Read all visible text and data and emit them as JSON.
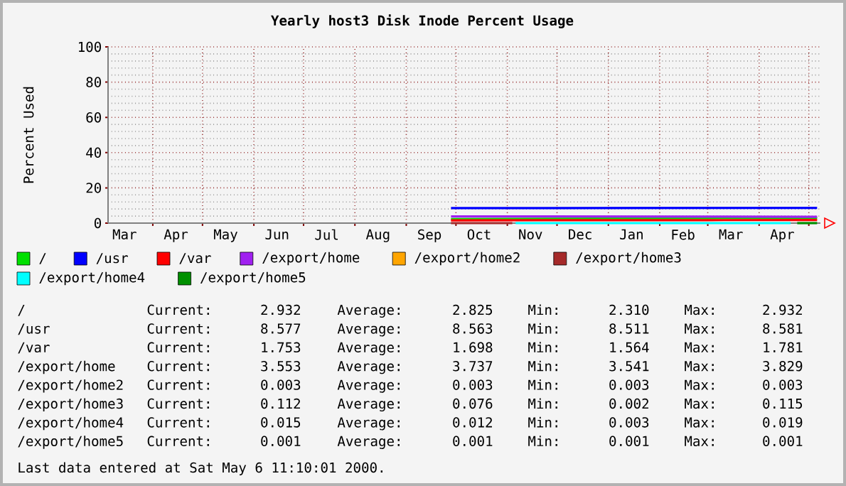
{
  "chart_data": {
    "type": "line",
    "title": "Yearly host3 Disk Inode Percent Usage",
    "ylabel": "Percent Used",
    "x": [
      "1999-09-28",
      "2000-03-01",
      "2000-05-06"
    ],
    "series": [
      {
        "name": "/",
        "color": "#00e000",
        "values": [
          2.3,
          2.8,
          2.9
        ]
      },
      {
        "name": "/usr",
        "color": "#0000ff",
        "values": [
          8.5,
          8.6,
          8.6
        ]
      },
      {
        "name": "/var",
        "color": "#ff0000",
        "values": [
          1.6,
          1.7,
          1.8
        ]
      },
      {
        "name": "/export/home",
        "color": "#a020f0",
        "values": [
          3.8,
          3.7,
          3.6
        ]
      },
      {
        "name": "/export/home2",
        "color": "#ffa500",
        "values": [
          null,
          null,
          null
        ]
      },
      {
        "name": "/export/home3",
        "color": "#a52a2a",
        "x": [
          "1999-09-28",
          "1999-11-04"
        ],
        "values": [
          0,
          0
        ]
      },
      {
        "name": "/export/home4",
        "color": "#00ffff",
        "x": [
          "1999-11-06",
          "2000-03-01",
          "2000-04-20"
        ],
        "values": [
          0,
          0,
          0
        ]
      },
      {
        "name": "/export/home5",
        "color": "#009000",
        "x": [
          "2000-04-24",
          "2000-05-06"
        ],
        "values": [
          0,
          0
        ]
      }
    ],
    "xlim": [
      "1999-03-05",
      "2000-05-08"
    ],
    "xticks": [
      {
        "value": "1999-03-15",
        "label": "Mar"
      },
      {
        "value": "1999-04-01",
        "label": null
      },
      {
        "value": "1999-04-15",
        "label": "Apr"
      },
      {
        "value": "1999-05-01",
        "label": null
      },
      {
        "value": "1999-05-15",
        "label": "May"
      },
      {
        "value": "1999-06-01",
        "label": null
      },
      {
        "value": "1999-06-15",
        "label": "Jun"
      },
      {
        "value": "1999-07-01",
        "label": null
      },
      {
        "value": "1999-07-15",
        "label": "Jul"
      },
      {
        "value": "1999-08-01",
        "label": null
      },
      {
        "value": "1999-08-15",
        "label": "Aug"
      },
      {
        "value": "1999-09-01",
        "label": null
      },
      {
        "value": "1999-09-15",
        "label": "Sep"
      },
      {
        "value": "1999-10-01",
        "label": null
      },
      {
        "value": "1999-10-15",
        "label": "Oct"
      },
      {
        "value": "1999-11-01",
        "label": null
      },
      {
        "value": "1999-11-15",
        "label": "Nov"
      },
      {
        "value": "1999-12-01",
        "label": null
      },
      {
        "value": "1999-12-15",
        "label": "Dec"
      },
      {
        "value": "2000-01-01",
        "label": null
      },
      {
        "value": "2000-01-15",
        "label": "Jan"
      },
      {
        "value": "2000-02-01",
        "label": null
      },
      {
        "value": "2000-02-15",
        "label": "Feb"
      },
      {
        "value": "2000-03-01",
        "label": null
      },
      {
        "value": "2000-03-15",
        "label": "Mar"
      },
      {
        "value": "2000-04-01",
        "label": null
      },
      {
        "value": "2000-04-15",
        "label": "Apr"
      },
      {
        "value": "2000-05-01",
        "label": null
      }
    ],
    "ylim": [
      0,
      100
    ],
    "yticks": [
      0,
      20,
      40,
      60,
      80,
      100
    ],
    "grid": true,
    "legend": "bottom",
    "marker": "none",
    "line_style": "solid",
    "annotations": [
      "Current:",
      "2.932",
      "Average:",
      "2.825",
      "Min:",
      "2.310",
      "Max:",
      "2.932",
      "Current:",
      "8.577",
      "Average:",
      "8.563",
      "Min:",
      "8.511",
      "Max:",
      "8.581",
      "Current:",
      "1.753",
      "Average:",
      "1.698",
      "Min:",
      "1.564",
      "Max:",
      "1.781",
      "Current:",
      "3.553",
      "Average:",
      "3.737",
      "Min:",
      "3.541",
      "Max:",
      "3.829",
      "Current:",
      "0.003",
      "Average:",
      "0.003",
      "Min:",
      "0.003",
      "Max:",
      "0.003",
      "Current:",
      "0.112",
      "Average:",
      "0.076",
      "Min:",
      "0.002",
      "Max:",
      "0.115",
      "Current:",
      "0.015",
      "Average:",
      "0.012",
      "Min:",
      "0.003",
      "Max:",
      "0.019",
      "Current:",
      "0.001",
      "Average:",
      "0.001",
      "Min:",
      "0.001",
      "Max:",
      "0.001",
      "Last data entered at Sat May  6 11:10:01 2000."
    ]
  }
}
